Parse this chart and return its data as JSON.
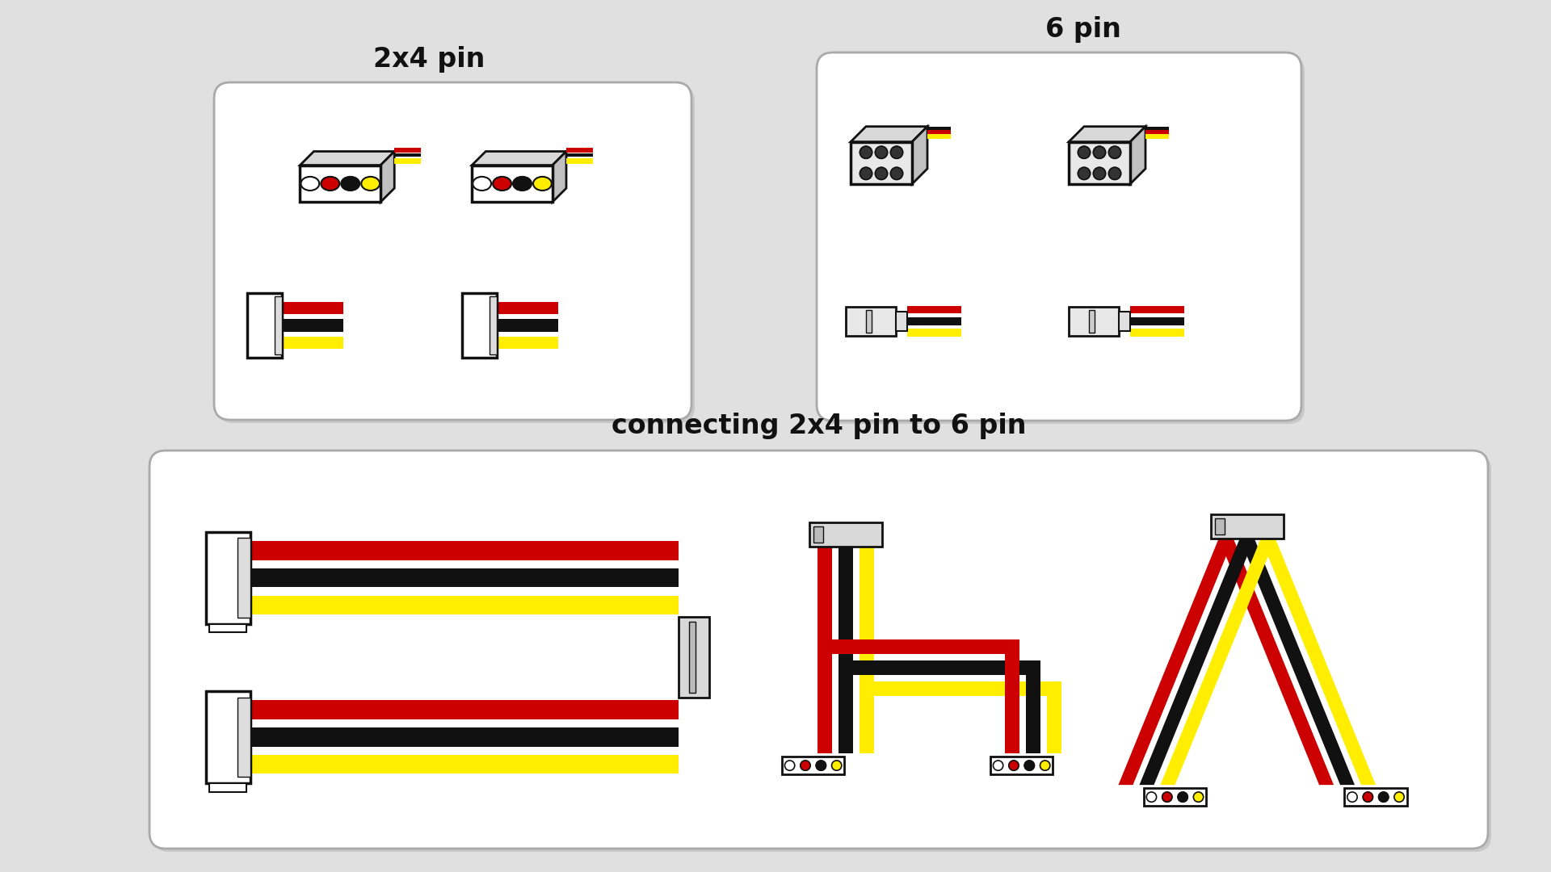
{
  "bg_color": "#e0e0e0",
  "panel_bg": "#ffffff",
  "panel_edge": "#bbbbbb",
  "panel_shadow": "#c8c8c8",
  "title_2x4": "2x4 pin",
  "title_6pin": "6 pin",
  "title_connecting": "connecting 2x4 pin to 6 pin",
  "title_fontsize": 24,
  "colors": {
    "red": "#cc0000",
    "black": "#111111",
    "yellow": "#ffee00",
    "white": "#ffffff",
    "light_gray": "#f0f0f0",
    "mid_gray": "#aaaaaa",
    "dark_gray": "#666666",
    "connector_body": "#ffffff",
    "connector_3d_top": "#d8d8d8",
    "connector_3d_side": "#c0c0c0",
    "connector_outline": "#111111",
    "wire_red": "#cc0000",
    "wire_black": "#111111",
    "wire_yellow": "#ffee00"
  }
}
